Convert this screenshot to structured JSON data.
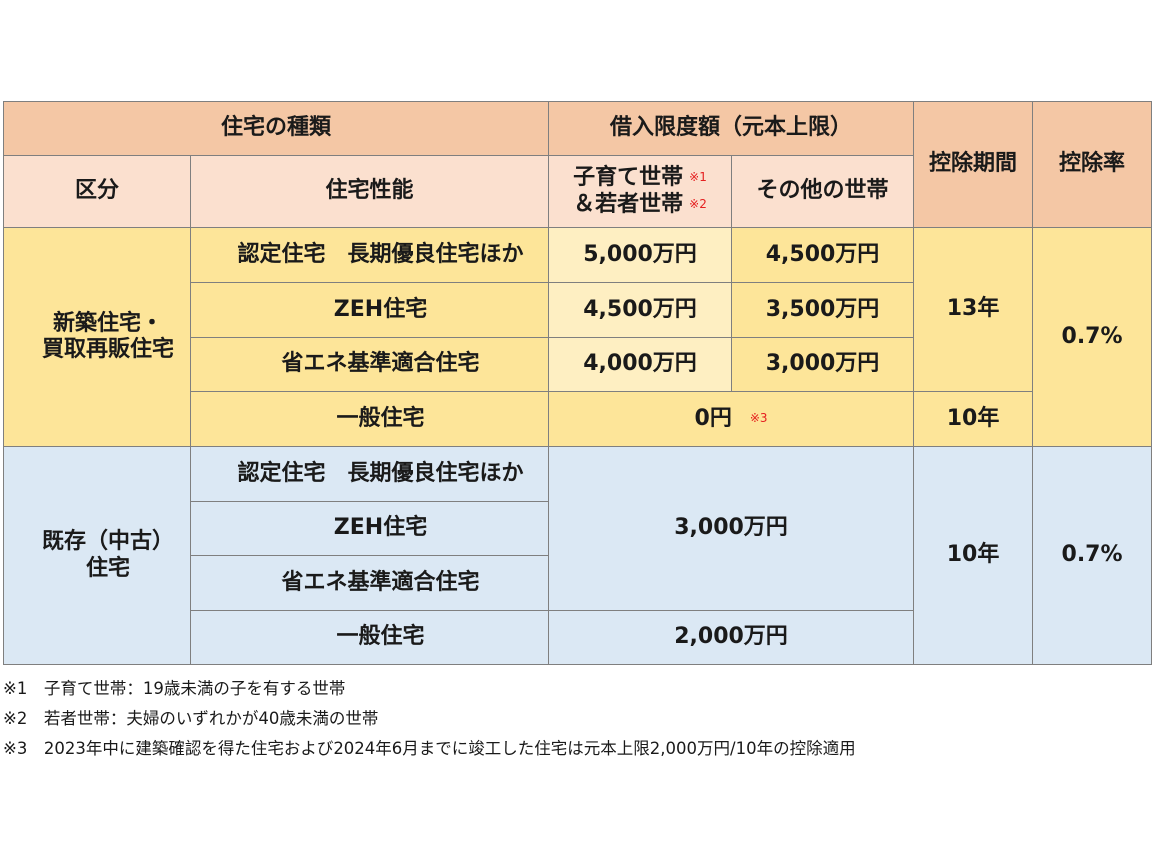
{
  "header": {
    "housing_type": "住宅の種類",
    "loan_limit": "借入限度額（元本上限）",
    "period": "控除期間",
    "rate": "控除率",
    "category": "区分",
    "performance": "住宅性能",
    "child_household": "子育て世帯",
    "young_household": "＆若者世帯",
    "mark1": "※1",
    "mark2": "※2",
    "other_household": "その他の世帯"
  },
  "new_section": {
    "category_line1": "新築住宅・",
    "category_line2": "買取再販住宅",
    "rows": [
      {
        "type": "認定住宅　長期優良住宅ほか",
        "child_young": "5,000万円",
        "other": "4,500万円"
      },
      {
        "type": "ZEH住宅",
        "child_young": "4,500万円",
        "other": "3,500万円"
      },
      {
        "type": "省エネ基準適合住宅",
        "child_young": "4,000万円",
        "other": "3,000万円"
      }
    ],
    "general_type": "一般住宅",
    "general_amount": "0円",
    "general_mark": "※3",
    "period_main": "13年",
    "period_general": "10年",
    "rate": "0.7%"
  },
  "existing_section": {
    "category_line1": "既存（中古）",
    "category_line2": "住宅",
    "types": [
      "認定住宅　長期優良住宅ほか",
      "ZEH住宅",
      "省エネ基準適合住宅"
    ],
    "amount_main": "3,000万円",
    "general_type": "一般住宅",
    "general_amount": "2,000万円",
    "period": "10年",
    "rate": "0.7%"
  },
  "notes": [
    "※1　子育て世帯：19歳未満の子を有する世帯",
    "※2　若者世帯：夫婦のいずれかが40歳未満の世帯",
    "※3　2023年中に建築確認を得た住宅および2024年6月までに竣工した住宅は元本上限2,000万円/10年の控除適用"
  ]
}
